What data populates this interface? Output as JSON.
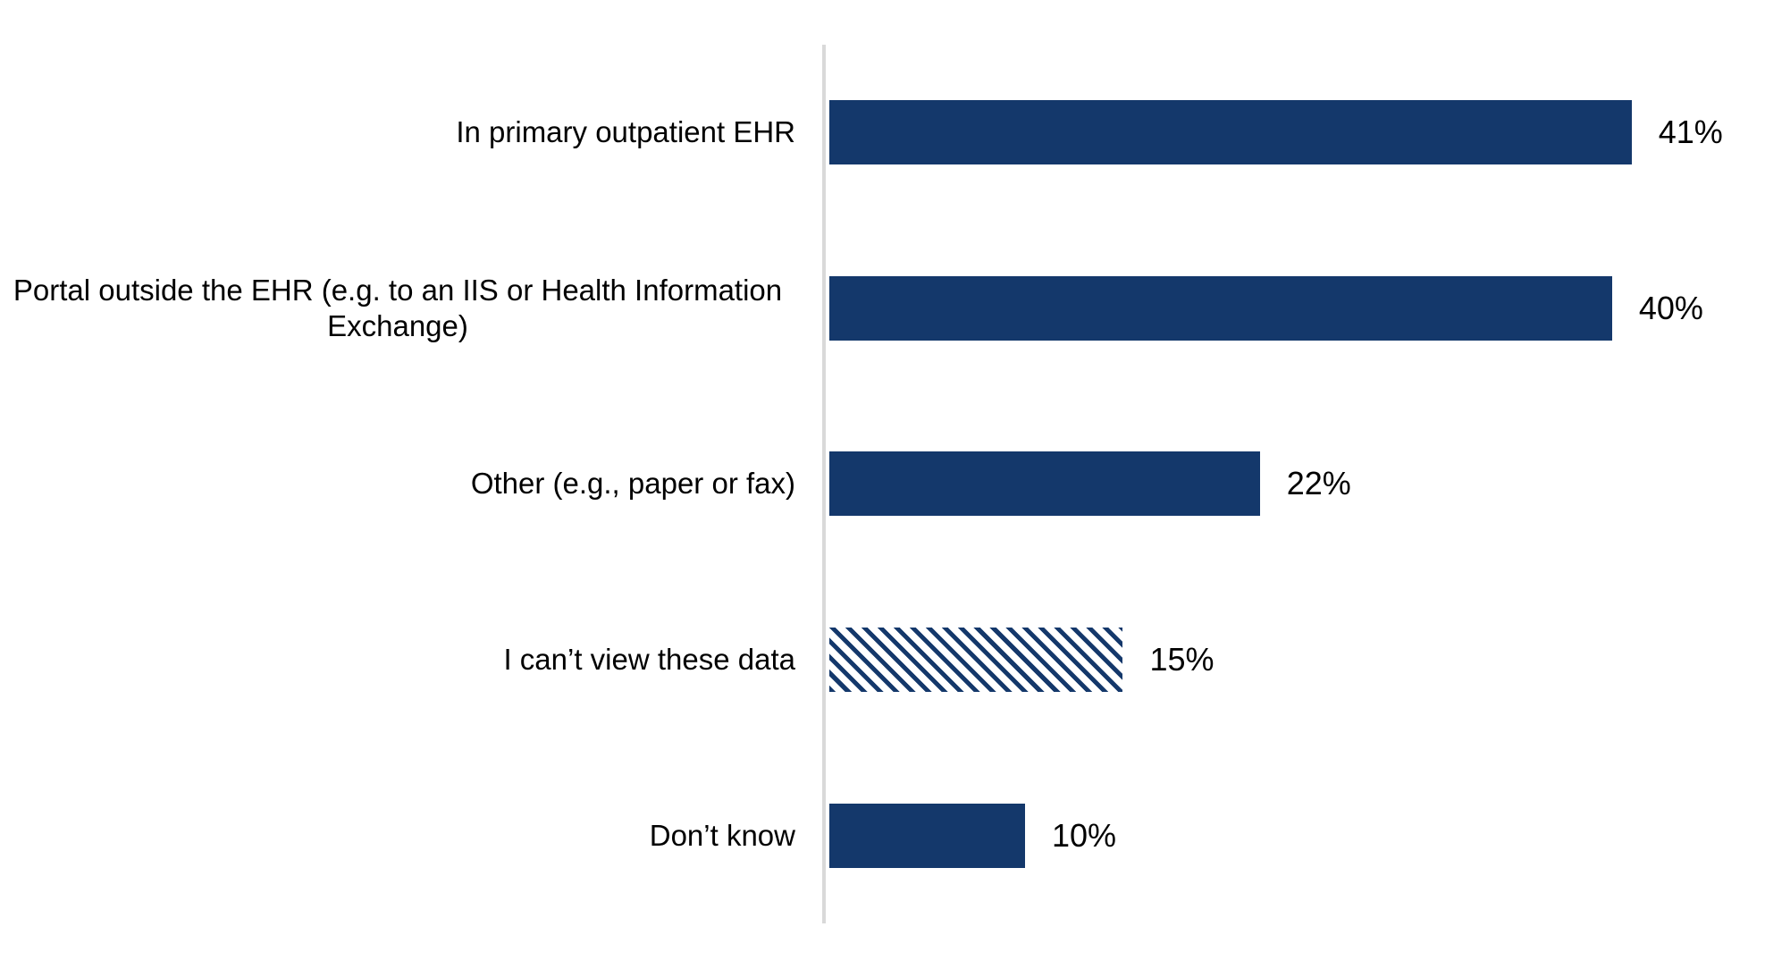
{
  "chart_data": {
    "type": "bar",
    "orientation": "horizontal",
    "title": "",
    "xlabel": "",
    "ylabel": "",
    "categories": [
      "In primary outpatient EHR",
      "Portal outside the EHR (e.g. to an IIS or Health Information Exchange)",
      "Other (e.g., paper or fax)",
      "I can’t view these data",
      "Don’t know"
    ],
    "values": [
      41,
      40,
      22,
      15,
      10
    ],
    "value_labels": [
      "41%",
      "40%",
      "22%",
      "15%",
      "10%"
    ],
    "bar_styles": [
      "solid",
      "solid",
      "solid",
      "hatched",
      "solid"
    ],
    "xlim": [
      0,
      48
    ],
    "grid": false,
    "legend": false,
    "axis_ticks_visible": false,
    "colors": {
      "bar": "#14386B",
      "hatch_background": "#FFFFFF",
      "axis_line": "#D9D9D9",
      "text": "#000000"
    }
  }
}
